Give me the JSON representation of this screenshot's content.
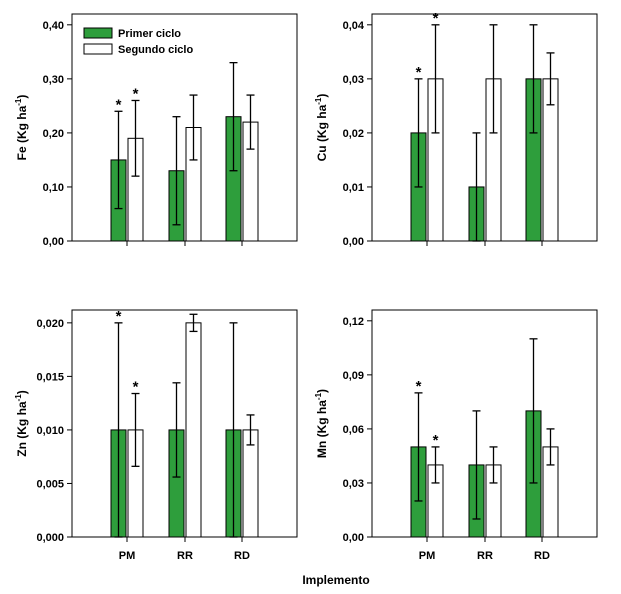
{
  "colors": {
    "primer": "#2e9e3c",
    "segundo": "#ffffff",
    "stroke": "#000000"
  },
  "xlabel_common": "Implemento",
  "chart_data": [
    {
      "type": "bar",
      "ylabel": "Fe (Kg ha-1)",
      "ylabel_main": "Fe (Kg ha",
      "ylabel_sup": "-1",
      "ylabel_close": ")",
      "categories": [
        "PM",
        "RR",
        "RD"
      ],
      "show_categories": false,
      "ylim": [
        0,
        0.42
      ],
      "yticks": [
        0,
        0.1,
        0.2,
        0.3,
        0.4
      ],
      "ytick_labels": [
        "0,00",
        "0,10",
        "0,20",
        "0,30",
        "0,40"
      ],
      "legend": {
        "position": "top-left",
        "entries": [
          "Primer ciclo",
          "Segundo ciclo"
        ]
      },
      "series": [
        {
          "name": "Primer ciclo",
          "values": [
            0.15,
            0.13,
            0.23
          ],
          "err_low": [
            0.06,
            0.03,
            0.13
          ],
          "err_high": [
            0.24,
            0.23,
            0.33
          ],
          "star": [
            true,
            false,
            false
          ]
        },
        {
          "name": "Segundo ciclo",
          "values": [
            0.19,
            0.21,
            0.22
          ],
          "err_low": [
            0.12,
            0.15,
            0.17
          ],
          "err_high": [
            0.26,
            0.27,
            0.27
          ],
          "star": [
            true,
            false,
            false
          ]
        }
      ]
    },
    {
      "type": "bar",
      "ylabel": "Cu (Kg ha-1)",
      "ylabel_main": "Cu (Kg ha",
      "ylabel_sup": "-1",
      "ylabel_close": ")",
      "categories": [
        "PM",
        "RR",
        "RD"
      ],
      "show_categories": false,
      "ylim": [
        0,
        0.042
      ],
      "yticks": [
        0,
        0.01,
        0.02,
        0.03,
        0.04
      ],
      "ytick_labels": [
        "0,00",
        "0,01",
        "0,02",
        "0,03",
        "0,04"
      ],
      "series": [
        {
          "name": "Primer ciclo",
          "values": [
            0.02,
            0.01,
            0.03
          ],
          "err_low": [
            0.01,
            0.0,
            0.02
          ],
          "err_high": [
            0.03,
            0.02,
            0.04
          ],
          "star": [
            true,
            false,
            false
          ]
        },
        {
          "name": "Segundo ciclo",
          "values": [
            0.03,
            0.03,
            0.03
          ],
          "err_low": [
            0.02,
            0.02,
            0.0252
          ],
          "err_high": [
            0.04,
            0.04,
            0.0348
          ],
          "star": [
            true,
            false,
            false
          ]
        }
      ]
    },
    {
      "type": "bar",
      "ylabel": "Zn (Kg ha-1)",
      "ylabel_main": "Zn (Kg ha",
      "ylabel_sup": "-1",
      "ylabel_close": ")",
      "categories": [
        "PM",
        "RR",
        "RD"
      ],
      "show_categories": true,
      "ylim": [
        0,
        0.0212
      ],
      "yticks": [
        0,
        0.005,
        0.01,
        0.015,
        0.02
      ],
      "ytick_labels": [
        "0,000",
        "0,005",
        "0,010",
        "0,015",
        "0,020"
      ],
      "series": [
        {
          "name": "Primer ciclo",
          "values": [
            0.01,
            0.01,
            0.01
          ],
          "err_low": [
            0.0,
            0.0056,
            0.0
          ],
          "err_high": [
            0.02,
            0.0144,
            0.02
          ],
          "star": [
            true,
            false,
            false
          ]
        },
        {
          "name": "Segundo ciclo",
          "values": [
            0.01,
            0.02,
            0.01
          ],
          "err_low": [
            0.0066,
            0.0192,
            0.0086
          ],
          "err_high": [
            0.0134,
            0.0208,
            0.0114
          ],
          "star": [
            true,
            false,
            false
          ]
        }
      ]
    },
    {
      "type": "bar",
      "ylabel": "Mn (Kg ha-1)",
      "ylabel_main": "Mn (Kg ha",
      "ylabel_sup": "-1",
      "ylabel_close": ")",
      "categories": [
        "PM",
        "RR",
        "RD"
      ],
      "show_categories": true,
      "ylim": [
        0,
        0.126
      ],
      "yticks": [
        0,
        0.03,
        0.06,
        0.09,
        0.12
      ],
      "ytick_labels": [
        "0,00",
        "0,03",
        "0,06",
        "0,09",
        "0,12"
      ],
      "series": [
        {
          "name": "Primer ciclo",
          "values": [
            0.05,
            0.04,
            0.07
          ],
          "err_low": [
            0.02,
            0.01,
            0.03
          ],
          "err_high": [
            0.08,
            0.07,
            0.11
          ],
          "star": [
            true,
            false,
            false
          ]
        },
        {
          "name": "Segundo ciclo",
          "values": [
            0.04,
            0.04,
            0.05
          ],
          "err_low": [
            0.03,
            0.03,
            0.04
          ],
          "err_high": [
            0.05,
            0.05,
            0.06
          ],
          "star": [
            true,
            false,
            false
          ]
        }
      ]
    }
  ]
}
